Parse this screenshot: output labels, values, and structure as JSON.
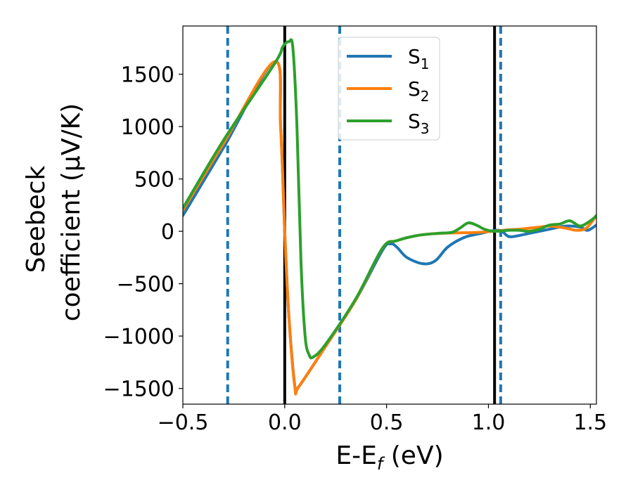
{
  "chart_data": {
    "type": "line",
    "xlabel": "E-E",
    "xlabel_sub": "f",
    "xlabel_unit": " (eV)",
    "ylabel_line1": "Seebeck",
    "ylabel_line2": "coefficient  (μV/K)",
    "xlim": [
      -0.5,
      1.53
    ],
    "ylim": [
      -1650,
      1960
    ],
    "xticks": [
      -0.5,
      0.0,
      0.5,
      1.0,
      1.5
    ],
    "xtick_labels": [
      "−0.5",
      "0.0",
      "0.5",
      "1.0",
      "1.5"
    ],
    "yticks": [
      -1500,
      -1000,
      -500,
      0,
      500,
      1000,
      1500
    ],
    "ytick_labels": [
      "−1500",
      "−1000",
      "−500",
      "0",
      "500",
      "1000",
      "1500"
    ],
    "grid": false,
    "legend_position": "top-center",
    "vlines": [
      {
        "x": -0.28,
        "style": "dashed",
        "color": "#1f77b4"
      },
      {
        "x": 0.0,
        "style": "solid",
        "color": "#000000"
      },
      {
        "x": 0.27,
        "style": "dashed",
        "color": "#1f77b4"
      },
      {
        "x": 1.03,
        "style": "solid",
        "color": "#000000"
      },
      {
        "x": 1.06,
        "style": "dashed",
        "color": "#1f77b4"
      }
    ],
    "series": [
      {
        "name": "S",
        "sub": "1",
        "color": "#1f77b4",
        "points": [
          [
            -0.5,
            150
          ],
          [
            -0.3,
            800
          ],
          [
            -0.05,
            1620
          ],
          [
            -0.02,
            1000
          ],
          [
            0.0,
            0
          ],
          [
            0.02,
            -800
          ],
          [
            0.05,
            -1480
          ],
          [
            0.07,
            -1480
          ],
          [
            0.2,
            -1100
          ],
          [
            0.35,
            -650
          ],
          [
            0.48,
            -180
          ],
          [
            0.52,
            -120
          ],
          [
            0.55,
            -150
          ],
          [
            0.6,
            -250
          ],
          [
            0.68,
            -310
          ],
          [
            0.74,
            -280
          ],
          [
            0.8,
            -150
          ],
          [
            0.88,
            -60
          ],
          [
            0.95,
            -25
          ],
          [
            1.05,
            10
          ],
          [
            1.1,
            -50
          ],
          [
            1.15,
            -40
          ],
          [
            1.2,
            -20
          ],
          [
            1.25,
            0
          ],
          [
            1.3,
            20
          ],
          [
            1.38,
            50
          ],
          [
            1.45,
            40
          ],
          [
            1.48,
            10
          ],
          [
            1.5,
            20
          ],
          [
            1.53,
            60
          ]
        ]
      },
      {
        "name": "S",
        "sub": "2",
        "color": "#ff7f0e",
        "points": [
          [
            -0.5,
            200
          ],
          [
            -0.3,
            840
          ],
          [
            -0.05,
            1620
          ],
          [
            -0.02,
            1000
          ],
          [
            0.0,
            0
          ],
          [
            0.02,
            -800
          ],
          [
            0.05,
            -1490
          ],
          [
            0.07,
            -1480
          ],
          [
            0.2,
            -1100
          ],
          [
            0.35,
            -650
          ],
          [
            0.48,
            -160
          ],
          [
            0.55,
            -90
          ],
          [
            0.65,
            -40
          ],
          [
            0.75,
            -20
          ],
          [
            0.85,
            -15
          ],
          [
            0.95,
            -10
          ],
          [
            1.05,
            5
          ],
          [
            1.1,
            15
          ],
          [
            1.15,
            20
          ],
          [
            1.2,
            30
          ],
          [
            1.25,
            40
          ],
          [
            1.3,
            50
          ],
          [
            1.38,
            30
          ],
          [
            1.43,
            10
          ],
          [
            1.48,
            30
          ],
          [
            1.53,
            150
          ]
        ]
      },
      {
        "name": "S",
        "sub": "3",
        "color": "#2ca02c",
        "points": [
          [
            -0.5,
            220
          ],
          [
            -0.3,
            870
          ],
          [
            -0.05,
            1600
          ],
          [
            -0.01,
            1760
          ],
          [
            0.02,
            1810
          ],
          [
            0.04,
            1750
          ],
          [
            0.06,
            1000
          ],
          [
            0.08,
            -300
          ],
          [
            0.1,
            -1000
          ],
          [
            0.12,
            -1180
          ],
          [
            0.14,
            -1200
          ],
          [
            0.2,
            -1080
          ],
          [
            0.35,
            -640
          ],
          [
            0.48,
            -160
          ],
          [
            0.55,
            -90
          ],
          [
            0.65,
            -40
          ],
          [
            0.75,
            -20
          ],
          [
            0.82,
            -10
          ],
          [
            0.86,
            30
          ],
          [
            0.9,
            80
          ],
          [
            0.94,
            60
          ],
          [
            0.98,
            20
          ],
          [
            1.03,
            0
          ],
          [
            1.1,
            10
          ],
          [
            1.15,
            10
          ],
          [
            1.2,
            0
          ],
          [
            1.25,
            20
          ],
          [
            1.3,
            60
          ],
          [
            1.35,
            70
          ],
          [
            1.4,
            100
          ],
          [
            1.45,
            50
          ],
          [
            1.5,
            100
          ],
          [
            1.53,
            150
          ]
        ]
      }
    ]
  }
}
